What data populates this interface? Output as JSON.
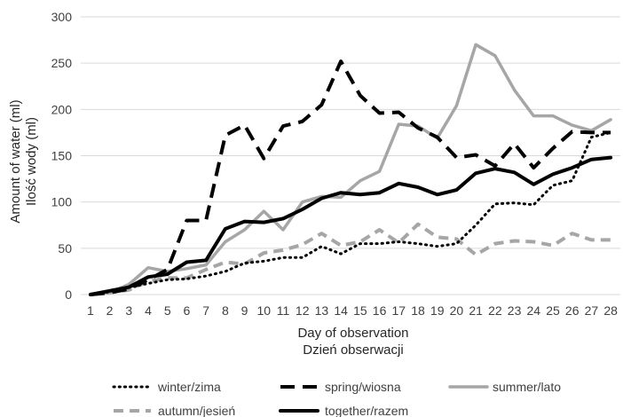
{
  "chart_data": {
    "type": "line",
    "title": "",
    "xlabel": [
      "Day of observation",
      "Dzień obserwacji"
    ],
    "ylabel": [
      "Amount of water (ml)",
      "Ilość wody (ml)"
    ],
    "ylim": [
      0,
      300
    ],
    "yticks": [
      0,
      50,
      100,
      150,
      200,
      250,
      300
    ],
    "categories": [
      "1",
      "2",
      "3",
      "4",
      "5",
      "6",
      "7",
      "8",
      "9",
      "10",
      "11",
      "12",
      "13",
      "14",
      "15",
      "16",
      "17",
      "18",
      "19",
      "20",
      "21",
      "22",
      "23",
      "24",
      "25",
      "26",
      "27",
      "28"
    ],
    "grid": "horizontal",
    "legend_position": "bottom",
    "series": [
      {
        "name": "winter/zima",
        "color": "#000000",
        "style": "dotted",
        "values": [
          0,
          3,
          8,
          12,
          16,
          17,
          20,
          25,
          34,
          36,
          40,
          40,
          52,
          44,
          55,
          55,
          57,
          55,
          52,
          55,
          75,
          98,
          99,
          97,
          118,
          123,
          170,
          175
        ]
      },
      {
        "name": "spring/wiosna",
        "color": "#000000",
        "style": "long-dash",
        "values": [
          0,
          2,
          6,
          16,
          27,
          80,
          80,
          172,
          183,
          147,
          182,
          187,
          205,
          252,
          215,
          196,
          197,
          180,
          170,
          148,
          151,
          139,
          163,
          137,
          158,
          176,
          175,
          175
        ]
      },
      {
        "name": "summer/lato",
        "color": "#A6A6A6",
        "style": "solid",
        "values": [
          0,
          2,
          11,
          29,
          25,
          28,
          32,
          57,
          70,
          90,
          70,
          100,
          106,
          105,
          123,
          133,
          184,
          182,
          169,
          204,
          270,
          258,
          221,
          193,
          193,
          183,
          177,
          189
        ]
      },
      {
        "name": "autumn/jesień",
        "color": "#A6A6A6",
        "style": "dashed",
        "values": [
          0,
          2,
          5,
          14,
          18,
          18,
          27,
          35,
          33,
          45,
          48,
          54,
          66,
          53,
          57,
          70,
          56,
          76,
          62,
          60,
          43,
          55,
          58,
          57,
          53,
          66,
          59,
          59
        ]
      },
      {
        "name": "together/razem",
        "color": "#000000",
        "style": "solid-thick",
        "values": [
          0,
          4,
          8,
          19,
          22,
          35,
          37,
          71,
          79,
          78,
          82,
          92,
          104,
          110,
          108,
          110,
          120,
          116,
          108,
          113,
          131,
          136,
          132,
          119,
          130,
          137,
          146,
          148
        ]
      }
    ]
  }
}
